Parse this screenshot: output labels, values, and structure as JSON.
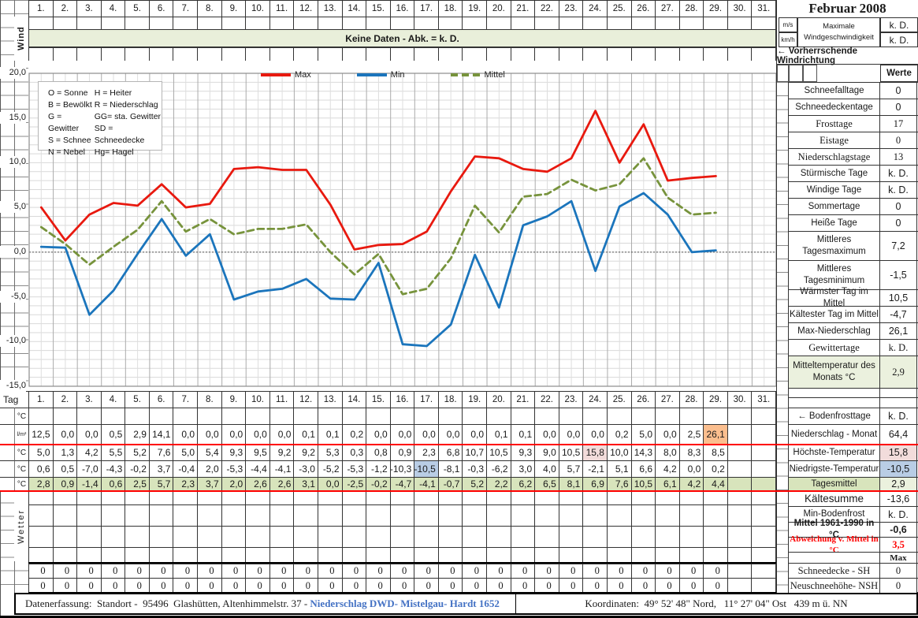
{
  "title": "Februar 2008",
  "days": [
    "1.",
    "2.",
    "3.",
    "4.",
    "5.",
    "6.",
    "7.",
    "8.",
    "9.",
    "10.",
    "11.",
    "12.",
    "13.",
    "14.",
    "15.",
    "16.",
    "17.",
    "18.",
    "19.",
    "20.",
    "21.",
    "22.",
    "23.",
    "24.",
    "25.",
    "26.",
    "27.",
    "28.",
    "29.",
    "30.",
    "31."
  ],
  "wind_section": {
    "row_label": "Wind",
    "banner": "Keine Daten - Abk. = k. D.",
    "unit1": "m/s",
    "unit2": "km/h",
    "max_label": "Maximale\nWindgeschwindigkeit",
    "value1": "k. D.",
    "value2": "k. D.",
    "direction_label": "← Vorherrschende Windrichtung",
    "werte_label": "Werte"
  },
  "chart_data": {
    "type": "line",
    "x_days": [
      1,
      2,
      3,
      4,
      5,
      6,
      7,
      8,
      9,
      10,
      11,
      12,
      13,
      14,
      15,
      16,
      17,
      18,
      19,
      20,
      21,
      22,
      23,
      24,
      25,
      26,
      27,
      28,
      29
    ],
    "x_categories_total": 31,
    "ylim": [
      -15,
      20
    ],
    "ytick_labels": [
      "20,0",
      "15,0",
      "10,0",
      "5,0",
      "0,0",
      "-5,0",
      "-10,0",
      "-15,0"
    ],
    "grid": true,
    "legend_position": "top",
    "series": [
      {
        "name": "Max",
        "color": "#E8190F",
        "dashed": false,
        "values": [
          5.0,
          1.3,
          4.2,
          5.5,
          5.2,
          7.6,
          5.0,
          5.4,
          9.3,
          9.5,
          9.2,
          9.2,
          5.3,
          0.3,
          0.8,
          0.9,
          2.3,
          6.8,
          10.7,
          10.5,
          9.3,
          9.0,
          10.5,
          15.8,
          10.0,
          14.3,
          8.0,
          8.3,
          8.5
        ]
      },
      {
        "name": "Min",
        "color": "#1B75BC",
        "dashed": false,
        "values": [
          0.6,
          0.5,
          -7.0,
          -4.3,
          -0.2,
          3.7,
          -0.4,
          2.0,
          -5.3,
          -4.4,
          -4.1,
          -3.0,
          -5.2,
          -5.3,
          -1.2,
          -10.3,
          -10.5,
          -8.1,
          -0.3,
          -6.2,
          3.0,
          4.0,
          5.7,
          -2.1,
          5.1,
          6.6,
          4.2,
          0.0,
          0.2
        ]
      },
      {
        "name": "Mittel",
        "color": "#77933C",
        "dashed": true,
        "values": [
          2.8,
          0.9,
          -1.4,
          0.6,
          2.5,
          5.7,
          2.3,
          3.7,
          2.0,
          2.6,
          2.6,
          3.1,
          0.0,
          -2.5,
          -0.2,
          -4.7,
          -4.1,
          -0.7,
          5.2,
          2.2,
          6.2,
          6.5,
          8.1,
          6.9,
          7.6,
          10.5,
          6.1,
          4.2,
          4.4
        ]
      }
    ]
  },
  "abbrev_box": {
    "col1": [
      "O = Sonne",
      "B = Bewölkt",
      "G = Gewitter",
      "S = Schnee",
      "N = Nebel"
    ],
    "col2": [
      "H = Heiter",
      "R = Niederschlag",
      "GG= sta. Gewitter",
      "SD = Schneedecke",
      "Hg= Hagel"
    ]
  },
  "bottom_table": {
    "tag_label": "Tag",
    "precip": [
      12.5,
      0,
      0,
      0.5,
      2.9,
      14.1,
      0,
      0,
      0,
      0,
      0,
      0.1,
      0.1,
      0.2,
      0,
      0,
      0,
      0,
      0,
      0.1,
      0.1,
      0,
      0,
      0,
      0.2,
      5,
      0,
      2.5,
      26.1
    ],
    "rows": [
      {
        "unit": "°C",
        "series": null
      },
      {
        "unit": "l/m²",
        "series": "precip"
      },
      {
        "unit": "°C",
        "series": "Max"
      },
      {
        "unit": "°C",
        "series": "Min"
      },
      {
        "unit": "°C",
        "series": "Mittel",
        "row_bg": "#D8E4BC"
      }
    ],
    "highlights": [
      {
        "series": "precip",
        "day": 29,
        "bg": "#FBBE8E"
      },
      {
        "series": "Max",
        "day": 24,
        "bg": "#F2DCDB"
      },
      {
        "series": "Min",
        "day": 17,
        "bg": "#B9CDE5"
      }
    ]
  },
  "wetter_section": {
    "label": "Wetter",
    "zero_rows": [
      [
        "0",
        "0",
        "0",
        "0",
        "0",
        "0",
        "0",
        "0",
        "0",
        "0",
        "0",
        "0",
        "0",
        "0",
        "0",
        "0",
        "0",
        "0",
        "0",
        "0",
        "0",
        "0",
        "0",
        "0",
        "0",
        "0",
        "0",
        "0",
        "0"
      ],
      [
        "0",
        "0",
        "0",
        "0",
        "0",
        "0",
        "0",
        "0",
        "0",
        "0",
        "0",
        "0",
        "0",
        "0",
        "0",
        "0",
        "0",
        "0",
        "0",
        "0",
        "0",
        "0",
        "0",
        "0",
        "0",
        "0",
        "0",
        "0",
        "0"
      ]
    ]
  },
  "right_panel": {
    "werte_header": "Werte",
    "stats": [
      {
        "label": "Schneefalltage",
        "value": "0"
      },
      {
        "label": "Schneedeckentage",
        "value": "0"
      },
      {
        "label": "Frosttage",
        "value": "17",
        "serif": true
      },
      {
        "label": "Eistage",
        "value": "0",
        "serif": true
      },
      {
        "label": "Niederschlagstage",
        "value": "13",
        "serif": true
      },
      {
        "label": "Stürmische Tage",
        "value": "k. D."
      },
      {
        "label": "Windige Tage",
        "value": "k. D."
      },
      {
        "label": "Sommertage",
        "value": "0"
      },
      {
        "label": "Heiße Tage",
        "value": "0"
      },
      {
        "label": "Mittleres\nTagesmaximum",
        "value": "7,2"
      },
      {
        "label": "Mittleres\nTagesminimum",
        "value": "-1,5"
      },
      {
        "label": "Wärmster Tag im Mittel",
        "value": "10,5"
      },
      {
        "label": "Kältester Tag im Mittel",
        "value": "-4,7"
      },
      {
        "label": "Max-Niederschlag",
        "value": "26,1"
      },
      {
        "label": "Gewittertage",
        "value": "k. D.",
        "serif": true
      },
      {
        "label": "Mitteltemperatur des\nMonats °C",
        "value": "2,9",
        "bg": "#EBF1DE",
        "value_serif": true
      }
    ],
    "lower_stats": [
      {
        "label": "← Bodenfrosttage",
        "value": "k. D."
      },
      {
        "label": "Niederschlag - Monat",
        "value": "64,4"
      },
      {
        "label": "Höchste-Temperatur",
        "value": "15,8",
        "value_bg": "#F2DCDB"
      },
      {
        "label": "Niedrigste-Temperatur",
        "value": "-10,5",
        "value_bg": "#B9CDE5"
      },
      {
        "label": "Tagesmittel",
        "value": "2,9",
        "label_bg": "#D8E4BC",
        "value_bg": "#EBF1DE"
      },
      {
        "label": "Kältesumme",
        "value": "-13,6",
        "big": true
      },
      {
        "label": "Min-Bodenfrost",
        "value": "k. D."
      },
      {
        "label": "Mittel 1961-1990 in °C",
        "value": "-0,6",
        "bold": true
      },
      {
        "label": "Abweichung v. Mittel in °C",
        "value": "3,5",
        "red": true,
        "serif": true,
        "bold": true
      }
    ],
    "snow": {
      "header": "Max",
      "rows": [
        {
          "label": "Schneedecke -  SH",
          "value": "0"
        },
        {
          "label": "Neuschneehöhe- NSH",
          "value": "0"
        }
      ]
    }
  },
  "footer": {
    "left_black": "Datenerfassung:  Standort -  95496  Glashütten, Altenhimmelstr. 37 - ",
    "left_blue": "Niederschlag DWD- Mistelgau- Hardt 1652",
    "right": "Koordinaten:  49° 52' 48\" Nord,   11° 27' 04\" Ost   439 m ü. NN"
  },
  "colors": {
    "banner_green": "#E9EFDA",
    "row_green": "#D8E4BC",
    "light_green": "#EBF1DE",
    "pink": "#F2DCDB",
    "blue": "#B9CDE5",
    "orange": "#FBBE8E",
    "red_line": "#FF0000",
    "footer_blue": "#4472C4"
  }
}
